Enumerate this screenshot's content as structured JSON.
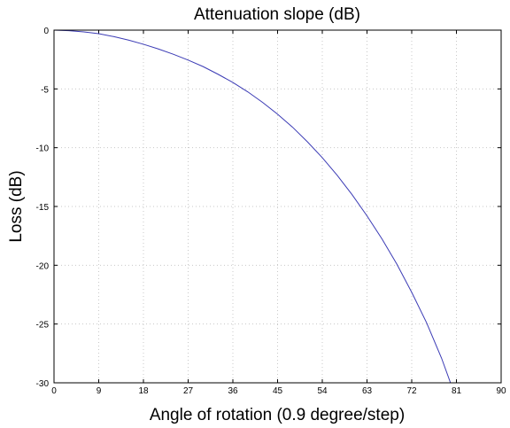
{
  "chart_data": {
    "type": "line",
    "title": "Attenuation slope (dB)",
    "xlabel": "Angle of rotation (0.9 degree/step)",
    "ylabel": "Loss (dB)",
    "xlim": [
      0,
      90
    ],
    "ylim": [
      -30,
      0
    ],
    "xticks": [
      0,
      9,
      18,
      27,
      36,
      45,
      54,
      63,
      72,
      81,
      90
    ],
    "yticks": [
      0,
      -5,
      -10,
      -15,
      -20,
      -25,
      -30
    ],
    "grid": true,
    "legend": "none",
    "series": [
      {
        "color": "#3b3bb5",
        "x": [
          0,
          3,
          6,
          9,
          12,
          15,
          18,
          21,
          24,
          27,
          30,
          33,
          36,
          39,
          42,
          45,
          48,
          51,
          54,
          57,
          60,
          63,
          66,
          69,
          72,
          75,
          78,
          79.8
        ],
        "y": [
          0,
          -0.05,
          -0.15,
          -0.3,
          -0.55,
          -0.85,
          -1.2,
          -1.6,
          -2.05,
          -2.55,
          -3.1,
          -3.75,
          -4.45,
          -5.25,
          -6.15,
          -7.15,
          -8.25,
          -9.5,
          -10.85,
          -12.35,
          -14.0,
          -15.8,
          -17.75,
          -19.9,
          -22.3,
          -24.9,
          -27.9,
          -30.0
        ]
      }
    ]
  }
}
